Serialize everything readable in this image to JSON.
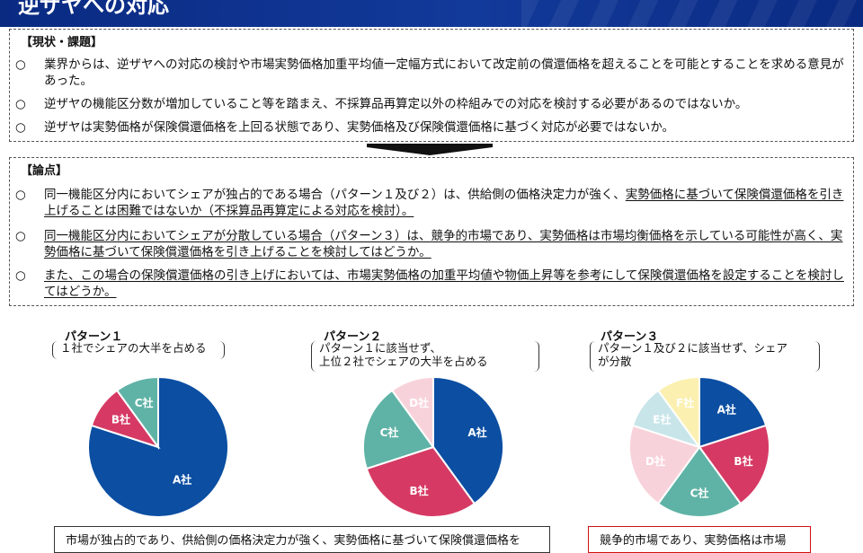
{
  "header": {
    "title": "逆ザヤへの対応"
  },
  "section1": {
    "title": "【現状・課題】",
    "items": [
      {
        "mark": "○",
        "text": "業界からは、逆ザヤへの対応の検討や市場実勢価格加重平均値一定幅方式において改定前の償還価格を超えることを可能とすることを求める意見があった。"
      },
      {
        "mark": "○",
        "text": "逆ザヤの機能区分数が増加していること等を踏まえ、不採算品再算定以外の枠組みでの対応を検討する必要があるのではないか。"
      },
      {
        "mark": "○",
        "text": "逆ザヤは実勢価格が保険償還価格を上回る状態であり、実勢価格及び保険償還価格に基づく対応が必要ではないか。"
      }
    ]
  },
  "section2": {
    "title": "【論点】",
    "items": [
      {
        "mark": "○",
        "text_a": "同一機能区分内においてシェアが独占的である場合（パターン１及び２）は、供給側の価格決定力が強く、",
        "text_b": "実勢価格に基づいて保険償還価格を引き上げることは困難ではないか（不採算品再算定による対応を検討）。"
      },
      {
        "mark": "○",
        "text_a": "同一機能区分内においてシェアが分散している場合（パターン３）は、競争的市場であり、実勢価格は市場均衡価格を示している可能性が高く、実勢価格に基づいて保険償還価格を引き上げることを検討してはどうか。"
      },
      {
        "mark": "○",
        "text_a": "また、この場合の保険償還価格の引き上げにおいては、市場実勢価格の加重平均値や物価上昇等を参考にして保険償還価格を設定することを検討してはどうか。"
      }
    ]
  },
  "patterns": [
    {
      "title": "パターン１",
      "desc": [
        "１社でシェアの大半を占める"
      ]
    },
    {
      "title": "パターン２",
      "desc": [
        "パターン１に該当せず、",
        "上位２社でシェアの大半を占める"
      ]
    },
    {
      "title": "パターン３",
      "desc": [
        "パターン１及び２に該当せず、シェア",
        "が分散"
      ]
    }
  ],
  "colors": {
    "A": "#0b4ea2",
    "B": "#d63a64",
    "C": "#5fb3a6",
    "D": "#f8d2da",
    "E": "#c8e5ea",
    "F": "#fbf0b0",
    "header": "#0a2a82",
    "redbox": "#d01010"
  },
  "chart_data": [
    {
      "type": "pie",
      "title": "パターン１",
      "labels": [
        "A社",
        "B社",
        "C社"
      ],
      "values": [
        80,
        10,
        10
      ]
    },
    {
      "type": "pie",
      "title": "パターン２",
      "labels": [
        "A社",
        "B社",
        "C社",
        "D社"
      ],
      "values": [
        40,
        30,
        20,
        10
      ]
    },
    {
      "type": "pie",
      "title": "パターン３",
      "labels": [
        "A社",
        "B社",
        "C社",
        "D社",
        "E社",
        "F社"
      ],
      "values": [
        20,
        20,
        20,
        20,
        10,
        10
      ]
    }
  ],
  "bottom": {
    "left_text": "市場が独占的であり、供給側の価格決定力が強く、実勢価格に基づいて保険償還価格を",
    "right_text": "競争的市場であり、実勢価格は市場"
  }
}
